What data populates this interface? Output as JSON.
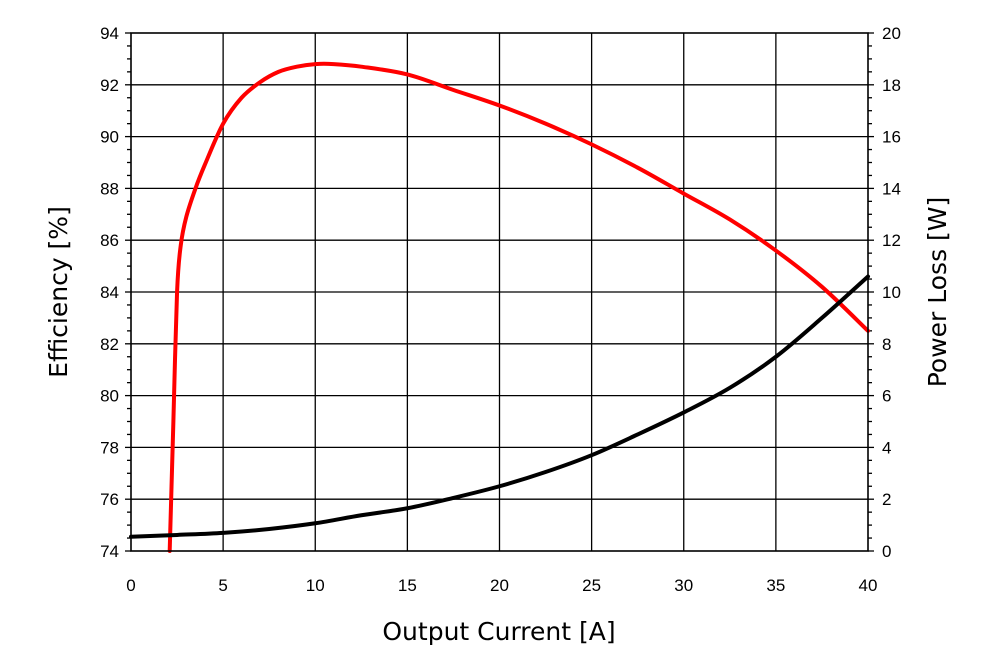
{
  "chart_data": {
    "type": "line",
    "title": "",
    "xlabel": "Output Current [A]",
    "ylabel": "Efficiency [%]",
    "y2label": "Power Loss [W]",
    "xlim": [
      0,
      40
    ],
    "ylim": [
      74,
      94
    ],
    "y2lim": [
      0,
      20
    ],
    "x_ticks": [
      0,
      5,
      10,
      15,
      20,
      25,
      30,
      35,
      40
    ],
    "y_ticks": [
      74,
      76,
      78,
      80,
      82,
      84,
      86,
      88,
      90,
      92,
      94
    ],
    "y2_ticks": [
      0,
      2,
      4,
      6,
      8,
      10,
      12,
      14,
      16,
      18,
      20
    ],
    "grid": true,
    "legend": "none",
    "series": [
      {
        "axis": "left",
        "color": "#ff0000",
        "x": [
          2.1,
          2.2,
          2.3,
          2.5,
          2.7,
          3.0,
          3.5,
          4.0,
          5.0,
          6.0,
          7.0,
          8.0,
          9.0,
          10.0,
          11.0,
          12.5,
          15.0,
          17.5,
          20.0,
          22.5,
          25.0,
          27.5,
          30.0,
          32.5,
          35.0,
          37.5,
          40.0
        ],
        "y": [
          74.0,
          76.5,
          79.0,
          84.0,
          85.8,
          86.9,
          88.0,
          88.9,
          90.5,
          91.5,
          92.1,
          92.5,
          92.7,
          92.8,
          92.8,
          92.7,
          92.4,
          91.8,
          91.2,
          90.5,
          89.7,
          88.8,
          87.8,
          86.8,
          85.6,
          84.2,
          82.5
        ]
      },
      {
        "axis": "right",
        "color": "#000000",
        "x": [
          0,
          2.5,
          5,
          7.5,
          10,
          12.5,
          15,
          17.5,
          20,
          22.5,
          25,
          27.5,
          30,
          32.5,
          35,
          37.5,
          40
        ],
        "y": [
          0.55,
          0.62,
          0.7,
          0.85,
          1.07,
          1.38,
          1.65,
          2.05,
          2.5,
          3.05,
          3.7,
          4.5,
          5.35,
          6.3,
          7.5,
          9.0,
          10.6
        ]
      }
    ]
  }
}
